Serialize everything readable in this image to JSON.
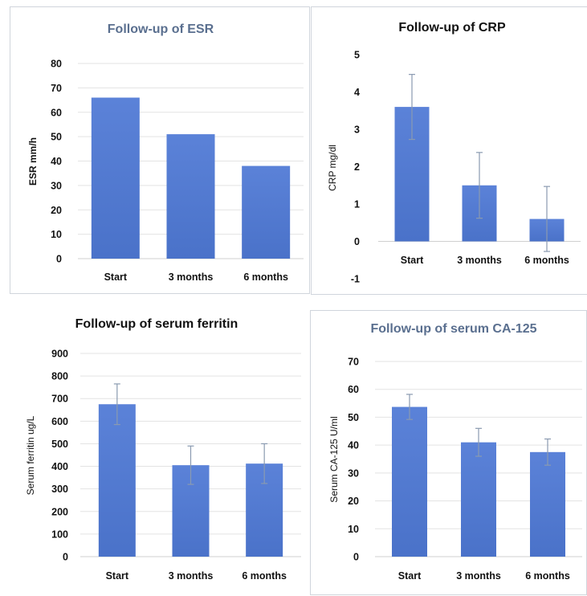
{
  "chart_data": [
    {
      "type": "bar",
      "title": "Follow-up of ESR",
      "title_color": "#5a6f8f",
      "ylabel": "ESR mm/h",
      "categories": [
        "Start",
        "3 months",
        "6 months"
      ],
      "values": [
        66,
        51,
        38
      ],
      "ylim": [
        0,
        80
      ],
      "yticks": [
        0,
        10,
        20,
        30,
        40,
        50,
        60,
        70,
        80
      ],
      "grid": true,
      "bar_color": "#4a72c9"
    },
    {
      "type": "bar",
      "title": "Follow-up of CRP",
      "title_color": "#111111",
      "ylabel": "CRP mg/dl",
      "categories": [
        "Start",
        "3 months",
        "6 months"
      ],
      "values": [
        3.6,
        1.5,
        0.6
      ],
      "errors": [
        0.87,
        0.88,
        0.87
      ],
      "ylim": [
        -1,
        5
      ],
      "yticks": [
        -1,
        0,
        1,
        2,
        3,
        4,
        5
      ],
      "grid": false,
      "bar_color": "#4a72c9"
    },
    {
      "type": "bar",
      "title": "Follow-up of serum ferritin",
      "title_color": "#111111",
      "ylabel": "Serum ferritin ug/L",
      "categories": [
        "Start",
        "3 months",
        "6 months"
      ],
      "values": [
        675,
        405,
        412
      ],
      "errors": [
        90,
        85,
        88
      ],
      "ylim": [
        0,
        900
      ],
      "yticks": [
        0,
        100,
        200,
        300,
        400,
        500,
        600,
        700,
        800,
        900
      ],
      "grid": true,
      "bar_color": "#4a72c9"
    },
    {
      "type": "bar",
      "title": "Follow-up of serum CA-125",
      "title_color": "#5a6f8f",
      "ylabel": "Serum CA-125 U/ml",
      "categories": [
        "Start",
        "3 months",
        "6 months"
      ],
      "values": [
        53.7,
        41,
        37.5
      ],
      "errors": [
        4.5,
        5,
        4.7
      ],
      "ylim": [
        0,
        70
      ],
      "yticks": [
        0,
        10,
        20,
        30,
        40,
        50,
        60,
        70
      ],
      "grid": true,
      "bar_color": "#4a72c9"
    }
  ]
}
